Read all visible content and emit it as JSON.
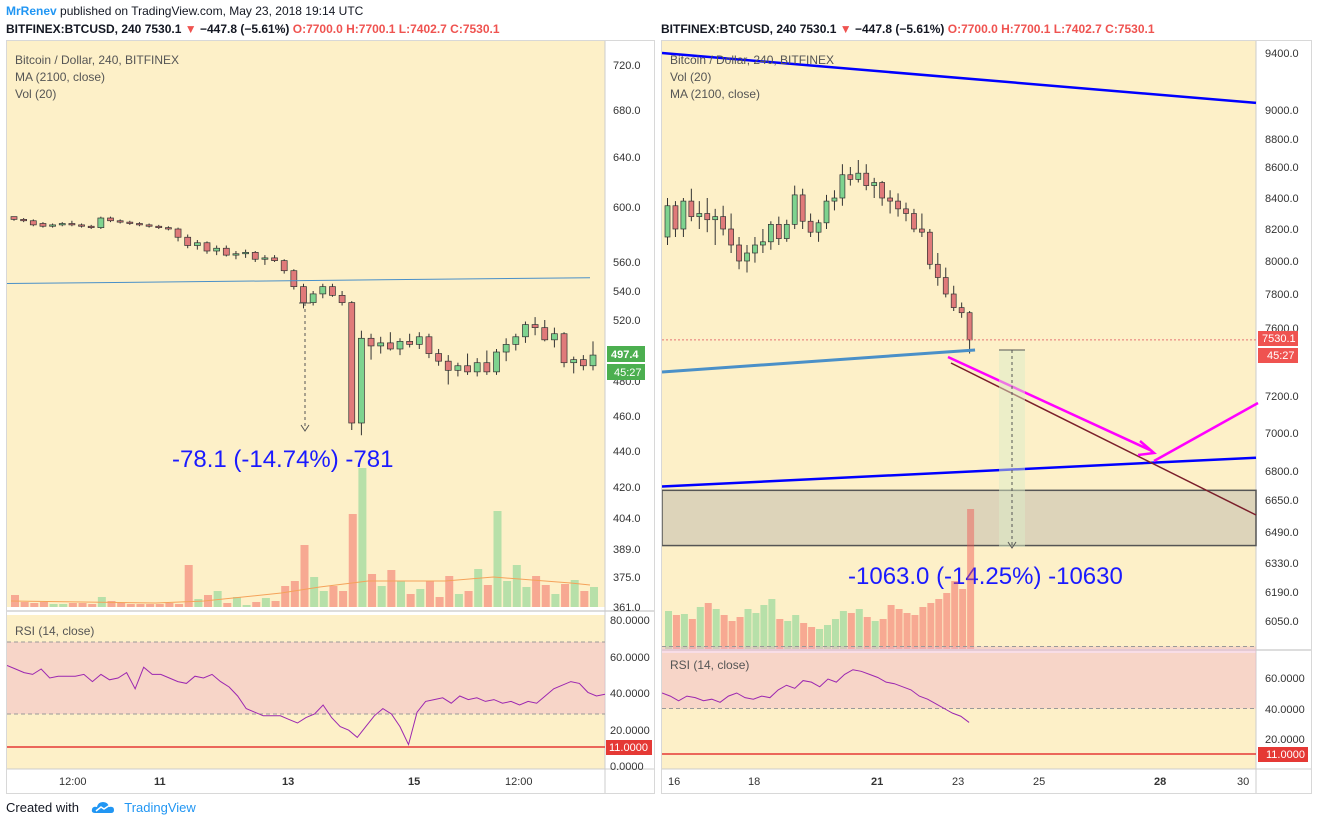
{
  "header": {
    "author": "MrRenev",
    "published": "published on TradingView.com, May 23, 2018 19:14 UTC"
  },
  "symbol_left": {
    "name": "BITFINEX:BTCUSD, 240",
    "price": "7530.1",
    "change": "−447.8 (−5.61%)",
    "ohlc": "O:7700.0 H:7700.1 L:7402.7 C:7530.1"
  },
  "symbol_right": {
    "name": "BITFINEX:BTCUSD, 240",
    "price": "7530.1",
    "change": "−447.8 (−5.61%)",
    "ohlc": "O:7700.0 H:7700.1 L:7402.7 C:7530.1"
  },
  "footer": {
    "created_with": "Created with",
    "brand": "TradingView"
  },
  "colors": {
    "up": "#26a69a",
    "down": "#ef5350",
    "bg": "#fdf0c8",
    "trend": "#0000ff",
    "magenta": "#ff00ff",
    "rsi": "#9c27b0",
    "ma": "#4a90c8"
  },
  "chart_data": [
    {
      "type": "candlestick",
      "title": "Bitcoin / Dollar, 240, BITFINEX",
      "legend": [
        "Bitcoin / Dollar, 240, BITFINEX",
        "MA (2100, close)",
        "Vol (20)"
      ],
      "x_ticks": [
        "12:00",
        "11",
        "13",
        "15",
        "12:00"
      ],
      "y_ticks": [
        "720.0",
        "680.0",
        "640.0",
        "600.0",
        "560.0",
        "540.0",
        "520.0",
        "480.0",
        "460.0",
        "440.0",
        "420.0",
        "404.0",
        "389.0",
        "375.0",
        "361.0"
      ],
      "ylim": [
        355,
        740
      ],
      "last_price_label": "497.4",
      "timer_label": "45:27",
      "measure_label": "-78.1 (-14.74%) -781",
      "candles": [
        [
          593,
          592,
          590,
          591
        ],
        [
          591,
          592,
          589,
          590
        ],
        [
          590,
          591,
          586,
          587
        ],
        [
          588,
          589,
          585,
          586
        ],
        [
          586,
          588,
          585,
          587
        ],
        [
          587,
          589,
          586,
          588
        ],
        [
          588,
          590,
          586,
          587
        ],
        [
          587,
          588,
          585,
          586
        ],
        [
          586,
          587,
          584,
          585
        ],
        [
          585,
          593,
          584,
          592
        ],
        [
          592,
          593,
          589,
          590
        ],
        [
          590,
          591,
          588,
          589
        ],
        [
          589,
          590,
          587,
          588
        ],
        [
          588,
          589,
          586,
          587
        ],
        [
          587,
          588,
          585,
          586
        ],
        [
          586,
          587,
          584,
          585
        ],
        [
          585,
          586,
          583,
          584
        ],
        [
          584,
          585,
          575,
          578
        ],
        [
          578,
          580,
          570,
          572
        ],
        [
          572,
          576,
          569,
          574
        ],
        [
          574,
          575,
          566,
          568
        ],
        [
          568,
          572,
          565,
          570
        ],
        [
          570,
          572,
          564,
          565
        ],
        [
          565,
          568,
          562,
          566
        ],
        [
          566,
          569,
          563,
          567
        ],
        [
          567,
          568,
          560,
          562
        ],
        [
          562,
          565,
          558,
          563
        ],
        [
          563,
          565,
          560,
          561
        ],
        [
          561,
          562,
          552,
          554
        ],
        [
          554,
          555,
          541,
          543
        ],
        [
          543,
          545,
          528,
          532
        ],
        [
          532,
          540,
          530,
          538
        ],
        [
          538,
          545,
          535,
          543
        ],
        [
          543,
          545,
          536,
          537
        ],
        [
          537,
          540,
          530,
          532
        ],
        [
          532,
          533,
          452,
          456
        ],
        [
          456,
          513,
          449,
          508
        ],
        [
          508,
          511,
          494,
          503
        ],
        [
          503,
          509,
          498,
          505
        ],
        [
          505,
          512,
          500,
          501
        ],
        [
          501,
          508,
          497,
          506
        ],
        [
          506,
          511,
          502,
          504
        ],
        [
          504,
          512,
          501,
          509
        ],
        [
          509,
          511,
          495,
          498
        ],
        [
          498,
          501,
          490,
          493
        ],
        [
          493,
          497,
          478,
          487
        ],
        [
          487,
          492,
          483,
          490
        ],
        [
          490,
          498,
          484,
          486
        ],
        [
          486,
          495,
          483,
          492
        ],
        [
          492,
          500,
          484,
          486
        ],
        [
          486,
          501,
          484,
          499
        ],
        [
          499,
          508,
          493,
          504
        ],
        [
          504,
          511,
          500,
          509
        ],
        [
          509,
          519,
          505,
          517
        ],
        [
          517,
          522,
          510,
          515
        ],
        [
          515,
          520,
          506,
          507
        ],
        [
          507,
          515,
          502,
          511
        ],
        [
          511,
          512,
          489,
          492
        ],
        [
          492,
          496,
          485,
          494
        ],
        [
          494,
          497,
          487,
          490
        ],
        [
          490,
          506,
          487,
          497
        ]
      ],
      "ma_series": [
        [
          0,
          535.5
        ],
        [
          60,
          539.5
        ]
      ],
      "volume": [
        12,
        5,
        4,
        5,
        3,
        3,
        4,
        4,
        3,
        10,
        6,
        4,
        3,
        3,
        3,
        3,
        4,
        3,
        42,
        8,
        12,
        16,
        4,
        10,
        2,
        5,
        9,
        6,
        21,
        26,
        62,
        30,
        16,
        21,
        16,
        93,
        139,
        33,
        21,
        37,
        26,
        13,
        18,
        26,
        10,
        31,
        13,
        16,
        38,
        22,
        96,
        26,
        42,
        20,
        31,
        22,
        13,
        23,
        27,
        16,
        20
      ],
      "volume_ma": [
        [
          0,
          6
        ],
        [
          15,
          4
        ],
        [
          20,
          6
        ],
        [
          28,
          14
        ],
        [
          32,
          20
        ],
        [
          37,
          26
        ],
        [
          45,
          26
        ],
        [
          50,
          30
        ],
        [
          58,
          24
        ],
        [
          60,
          22
        ]
      ],
      "rsi": {
        "label": "RSI (14, close)",
        "y_ticks": [
          "80.0000",
          "60.0000",
          "40.0000",
          "20.0000",
          "0.0000"
        ],
        "band": [
          30,
          70
        ],
        "level_label": "11.0000",
        "values": [
          57,
          55,
          53,
          52,
          55,
          50,
          51,
          51,
          51,
          52,
          48,
          52,
          49,
          50,
          53,
          44,
          56,
          52,
          52,
          50,
          48,
          47,
          51,
          50,
          52,
          48,
          45,
          40,
          33,
          31,
          29,
          29,
          29,
          27,
          25,
          28,
          30,
          35,
          28,
          23,
          21,
          17,
          23,
          29,
          33,
          30,
          23,
          13,
          31,
          37,
          38,
          39,
          36,
          40,
          38,
          39,
          37,
          38,
          36,
          37,
          35,
          37,
          36,
          40,
          44,
          46,
          48,
          47,
          42,
          40,
          41
        ]
      }
    },
    {
      "type": "candlestick",
      "title": "Bitcoin / Dollar, 240, BITFINEX",
      "legend": [
        "Bitcoin / Dollar, 240, BITFINEX",
        "Vol (20)",
        "MA (2100, close)"
      ],
      "x_ticks": [
        "16",
        "18",
        "21",
        "23",
        "25",
        "28",
        "30"
      ],
      "y_ticks": [
        "9400.0",
        "9000.0",
        "8800.0",
        "8600.0",
        "8400.0",
        "8200.0",
        "8000.0",
        "7800.0",
        "7600.0",
        "7200.0",
        "7000.0",
        "6800.0",
        "6650.0",
        "6490.0",
        "6330.0",
        "6190.0",
        "6050.0"
      ],
      "last_price_label": "7530.1",
      "timer_label": "45:27",
      "measure_label": "-1063.0 (-14.25%) -10630",
      "candles": [
        [
          8150,
          8400,
          8100,
          8350
        ],
        [
          8350,
          8380,
          8150,
          8200
        ],
        [
          8200,
          8400,
          8150,
          8380
        ],
        [
          8380,
          8460,
          8250,
          8280
        ],
        [
          8280,
          8380,
          8200,
          8300
        ],
        [
          8300,
          8400,
          8180,
          8260
        ],
        [
          8260,
          8330,
          8100,
          8280
        ],
        [
          8280,
          8350,
          8160,
          8200
        ],
        [
          8200,
          8300,
          8050,
          8100
        ],
        [
          8100,
          8150,
          7950,
          8000
        ],
        [
          8000,
          8100,
          7930,
          8050
        ],
        [
          8050,
          8150,
          7990,
          8100
        ],
        [
          8100,
          8200,
          8050,
          8120
        ],
        [
          8120,
          8250,
          8070,
          8230
        ],
        [
          8230,
          8280,
          8100,
          8140
        ],
        [
          8140,
          8260,
          8120,
          8230
        ],
        [
          8230,
          8480,
          8200,
          8420
        ],
        [
          8420,
          8460,
          8200,
          8250
        ],
        [
          8250,
          8300,
          8150,
          8180
        ],
        [
          8180,
          8260,
          8120,
          8240
        ],
        [
          8240,
          8420,
          8200,
          8380
        ],
        [
          8380,
          8450,
          8320,
          8400
        ],
        [
          8400,
          8620,
          8350,
          8550
        ],
        [
          8550,
          8600,
          8480,
          8520
        ],
        [
          8520,
          8650,
          8500,
          8560
        ],
        [
          8560,
          8620,
          8450,
          8480
        ],
        [
          8480,
          8530,
          8400,
          8500
        ],
        [
          8500,
          8510,
          8350,
          8400
        ],
        [
          8400,
          8450,
          8300,
          8380
        ],
        [
          8380,
          8430,
          8280,
          8330
        ],
        [
          8330,
          8370,
          8250,
          8300
        ],
        [
          8300,
          8330,
          8180,
          8200
        ],
        [
          8200,
          8300,
          8150,
          8180
        ],
        [
          8180,
          8200,
          7950,
          7980
        ],
        [
          7980,
          8050,
          7850,
          7900
        ],
        [
          7900,
          7960,
          7780,
          7800
        ],
        [
          7800,
          7850,
          7700,
          7720
        ],
        [
          7720,
          7750,
          7660,
          7690
        ],
        [
          7690,
          7700,
          7450,
          7530
        ]
      ],
      "ma_series": [
        [
          0,
          7440
        ],
        [
          39,
          7500
        ]
      ],
      "trendlines": [
        {
          "name": "upper",
          "from": [
            0,
            9440
          ],
          "to": [
            73,
            9050
          ],
          "color": "#0000ff"
        },
        {
          "name": "lower",
          "from": [
            0,
            6720
          ],
          "to": [
            73,
            6870
          ],
          "color": "#0000ff"
        }
      ],
      "zone": {
        "top": 6700,
        "bottom": 6420
      },
      "volume": [
        38,
        34,
        35,
        30,
        42,
        46,
        40,
        34,
        28,
        32,
        40,
        36,
        44,
        50,
        30,
        28,
        34,
        26,
        22,
        20,
        24,
        30,
        38,
        36,
        40,
        32,
        28,
        30,
        44,
        40,
        36,
        34,
        42,
        46,
        50,
        56,
        68,
        60,
        140
      ],
      "rsi": {
        "label": "RSI (14, close)",
        "y_ticks": [
          "60.0000",
          "40.0000",
          "20.0000"
        ],
        "band": [
          30,
          70
        ],
        "level_label": "11.0000",
        "values": [
          40,
          38,
          35,
          38,
          37,
          35,
          36,
          34,
          38,
          40,
          37,
          36,
          38,
          37,
          42,
          45,
          43,
          48,
          47,
          44,
          49,
          47,
          52,
          55,
          54,
          52,
          50,
          47,
          46,
          44,
          42,
          38,
          36,
          33,
          30,
          27,
          25,
          21
        ]
      }
    }
  ]
}
